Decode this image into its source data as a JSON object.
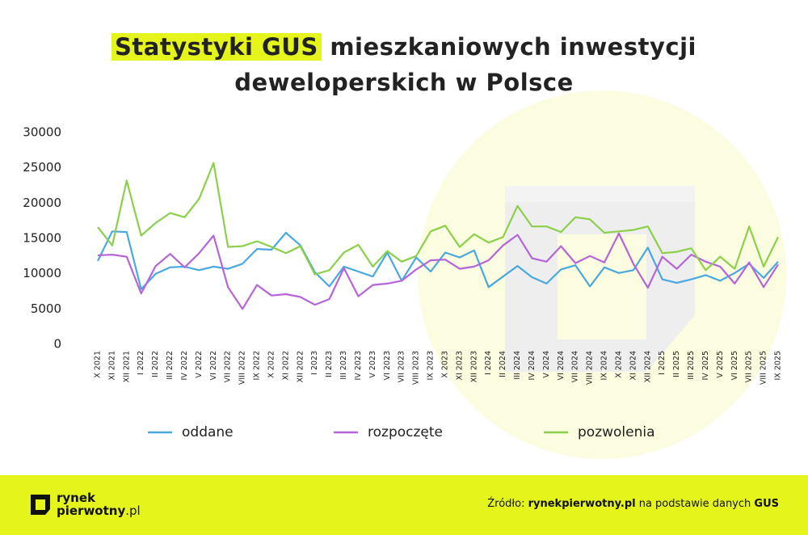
{
  "chart_data": {
    "type": "line",
    "title_highlight": "Statystyki GUS",
    "title_line1": "mieszkaniowych inwestycji",
    "title_line2": "deweloperskich w Polsce",
    "categories": [
      "X 2021",
      "XI 2021",
      "XII 2021",
      "I 2022",
      "II 2022",
      "III 2022",
      "IV 2022",
      "V 2022",
      "VI 2022",
      "VII 2022",
      "VIII 2022",
      "IX 2022",
      "X 2022",
      "XI 2022",
      "XII 2022",
      "I 2023",
      "II 2023",
      "III 2023",
      "IV 2023",
      "V 2023",
      "VI 2023",
      "VII 2023",
      "VIII 2023",
      "IX 2023",
      "X 2023",
      "XI 2023",
      "XII 2023",
      "I 2024",
      "II 2024",
      "III 2024",
      "IV 2024",
      "V 2024",
      "VI 2024",
      "VII 2024",
      "VIII 2024",
      "IX 2024",
      "X 2024",
      "XI 2024",
      "XII 2024",
      "I 2025",
      "II 2025",
      "III 2025",
      "IV 2025",
      "V 2025",
      "VI 2025",
      "VII 2025",
      "VIII 2025",
      "IX 2025"
    ],
    "series": [
      {
        "name": "oddane",
        "color": "#4aa8e0",
        "values": [
          11800,
          16000,
          15900,
          7800,
          10000,
          10900,
          11000,
          10500,
          11000,
          10700,
          11400,
          13500,
          13400,
          15800,
          14000,
          10200,
          8200,
          11000,
          10300,
          9600,
          13000,
          9000,
          12300,
          10300,
          13000,
          12300,
          13300,
          8100,
          9600,
          11100,
          9500,
          8600,
          10600,
          11200,
          8200,
          10900,
          10100,
          10500,
          13700,
          9200,
          8700,
          9200,
          9800,
          9000,
          10100,
          11400,
          9400,
          11700
        ]
      },
      {
        "name": "rozpoczęte",
        "color": "#b565d8",
        "values": [
          12600,
          12700,
          12400,
          7200,
          11100,
          12800,
          10900,
          12900,
          15400,
          8100,
          5000,
          8400,
          6900,
          7100,
          6700,
          5600,
          6400,
          10800,
          6800,
          8400,
          8600,
          9000,
          10600,
          11900,
          12000,
          10700,
          11000,
          11900,
          14000,
          15500,
          12200,
          11700,
          13900,
          11500,
          12500,
          11600,
          15700,
          11400,
          8000,
          12400,
          10700,
          12700,
          11700,
          11000,
          8600,
          11600,
          8100,
          11300
        ]
      },
      {
        "name": "pozwolenia",
        "color": "#8ccf4a",
        "values": [
          16600,
          14000,
          23200,
          15400,
          17200,
          18600,
          18000,
          20600,
          25700,
          13800,
          13900,
          14600,
          13800,
          12900,
          13900,
          9900,
          10500,
          13000,
          14100,
          11000,
          13200,
          11700,
          12500,
          16000,
          16800,
          13800,
          15600,
          14400,
          15200,
          19600,
          16700,
          16700,
          15900,
          18000,
          17700,
          15800,
          16000,
          16200,
          16700,
          12900,
          13100,
          13600,
          10500,
          12400,
          10700,
          16700,
          11000,
          15200
        ]
      }
    ],
    "ylim": [
      0,
      30000
    ],
    "yticks": [
      0,
      5000,
      10000,
      15000,
      20000,
      25000,
      30000
    ],
    "grid": false
  },
  "footer": {
    "logo_line1": "rynek",
    "logo_line2": "pierwotny",
    "logo_suffix": ".pl",
    "source_label": "Źródło:",
    "source_site": "rynekpierwotny.pl",
    "source_text": "na podstawie danych",
    "source_org": "GUS"
  }
}
